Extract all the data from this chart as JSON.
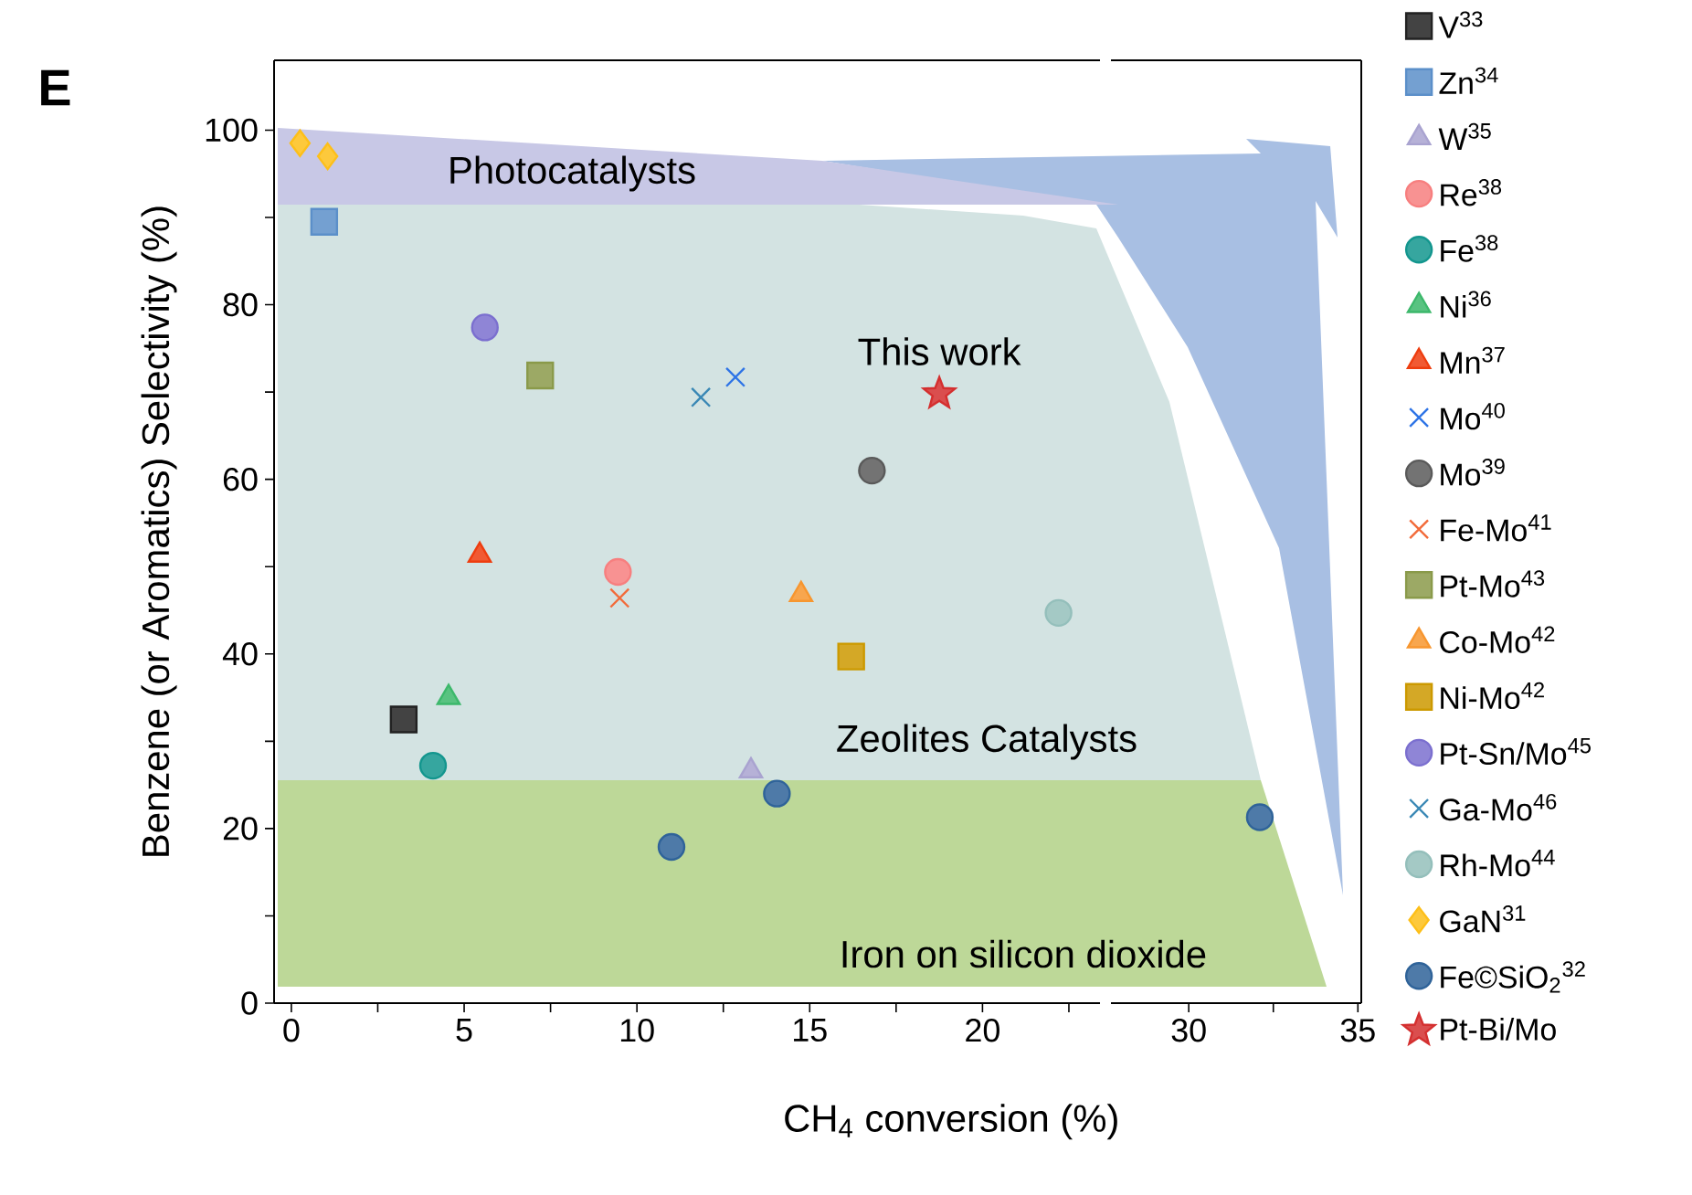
{
  "chart_data": [
    {
      "type": "scatter",
      "xlabel": "CH$_{4}$ conversion (%)",
      "ylabel": "Benzene (or Aromatics) Selectivity (%)",
      "xlim": [
        -0.5,
        23.4
      ],
      "ylim": [
        0,
        108
      ],
      "xticks": [
        0,
        {
          "value": 2.5,
          "label": null
        },
        5,
        {
          "value": 7.5,
          "label": null
        },
        10,
        {
          "value": 12.5,
          "label": null
        },
        15,
        {
          "value": 17.5,
          "label": null
        },
        20,
        {
          "value": 22.5,
          "label": null
        }
      ],
      "yticks": [
        0,
        {
          "value": 10,
          "label": null
        },
        20,
        {
          "value": 30,
          "label": null
        },
        40,
        {
          "value": 50,
          "label": null
        },
        60,
        {
          "value": 70,
          "label": null
        },
        80,
        {
          "value": 90,
          "label": null
        },
        100
      ],
      "legend": "right",
      "annotations": [
        "E",
        "Photocatalysts",
        "Zeolites Catalysts",
        "Iron on silicon dioxide",
        {
          "text": "This work",
          "x": 18.75,
          "y": 69.8
        }
      ],
      "series": [
        {
          "name": "V$^{33}$",
          "color": "#222222",
          "marker": "square",
          "x": [
            3.25
          ],
          "values": [
            32.5
          ]
        },
        {
          "name": "Zn$^{34}$",
          "color": "#5b8fc9",
          "marker": "square",
          "x": [
            0.95
          ],
          "values": [
            89.5
          ]
        },
        {
          "name": "W$^{35}$",
          "color": "#a9a3d0",
          "marker": "triangle",
          "x": [
            13.3
          ],
          "values": [
            26.6
          ]
        },
        {
          "name": "Re$^{38}$",
          "color": "#f77f7f",
          "marker": "circle",
          "x": [
            9.45
          ],
          "values": [
            49.4
          ]
        },
        {
          "name": "Fe$^{38}$",
          "color": "#13968e",
          "marker": "circle",
          "x": [
            4.1
          ],
          "values": [
            27.2
          ]
        },
        {
          "name": "Ni$^{36}$",
          "color": "#3cb86b",
          "marker": "triangle",
          "x": [
            4.55
          ],
          "values": [
            35
          ]
        },
        {
          "name": "Mn$^{37}$",
          "color": "#ee3d0f",
          "marker": "triangle",
          "x": [
            5.45
          ],
          "values": [
            51.3
          ]
        },
        {
          "name": "Mo$^{40}$",
          "color": "#2e74e6",
          "marker": "cross",
          "x": [
            12.85
          ],
          "values": [
            71.7
          ]
        },
        {
          "name": "Mo$^{39}$",
          "color": "#5a5a5a",
          "marker": "circle",
          "x": [
            16.8
          ],
          "values": [
            61
          ]
        },
        {
          "name": "Fe-Mo$^{41}$",
          "color": "#f26b3a",
          "marker": "cross",
          "x": [
            9.5
          ],
          "values": [
            46.4
          ]
        },
        {
          "name": "Pt-Mo$^{43}$",
          "color": "#8a9a4a",
          "marker": "square",
          "x": [
            7.2
          ],
          "values": [
            71.9
          ]
        },
        {
          "name": "Co-Mo$^{42}$",
          "color": "#f7962f",
          "marker": "triangle",
          "x": [
            14.75
          ],
          "values": [
            46.8
          ]
        },
        {
          "name": "Ni-Mo$^{42}$",
          "color": "#cc9900",
          "marker": "square",
          "x": [
            16.2
          ],
          "values": [
            39.7
          ]
        },
        {
          "name": "Pt-Sn/Mo$^{45}$",
          "color": "#7b6fcf",
          "marker": "circle",
          "x": [
            5.6
          ],
          "values": [
            77.4
          ]
        },
        {
          "name": "Ga-Mo$^{46}$",
          "color": "#3a88b5",
          "marker": "cross",
          "x": [
            11.85
          ],
          "values": [
            69.4
          ]
        },
        {
          "name": "Rh-Mo$^{44}$",
          "color": "#94bfbb",
          "marker": "circle",
          "x": [
            22.2
          ],
          "values": [
            44.7
          ]
        },
        {
          "name": "GaN$^{31}$",
          "color": "#fdbf19",
          "marker": "diamond",
          "x": [
            0.25,
            1.05
          ],
          "values": [
            98.5,
            97
          ]
        },
        {
          "name": "Fe©SiO$_{2}$$^{32}$",
          "color": "#2f6399",
          "marker": "circle",
          "x": [
            11.0,
            14.05
          ],
          "values": [
            17.9,
            24
          ]
        },
        {
          "name": "Pt-Bi/Mo",
          "color": "#d42f2f",
          "marker": "star",
          "x": [
            18.75
          ],
          "values": [
            69.8
          ]
        }
      ]
    },
    {
      "type": "scatter",
      "xlim": [
        27.7,
        35.1
      ],
      "ylim": [
        0,
        108
      ],
      "tick_labels": "x",
      "xticks": [
        30,
        {
          "value": 32.5,
          "label": null
        },
        35
      ],
      "series": [
        {
          "color": "#2f6399",
          "marker": "circle",
          "x": [
            32.1
          ],
          "values": [
            21.3
          ]
        }
      ]
    }
  ]
}
